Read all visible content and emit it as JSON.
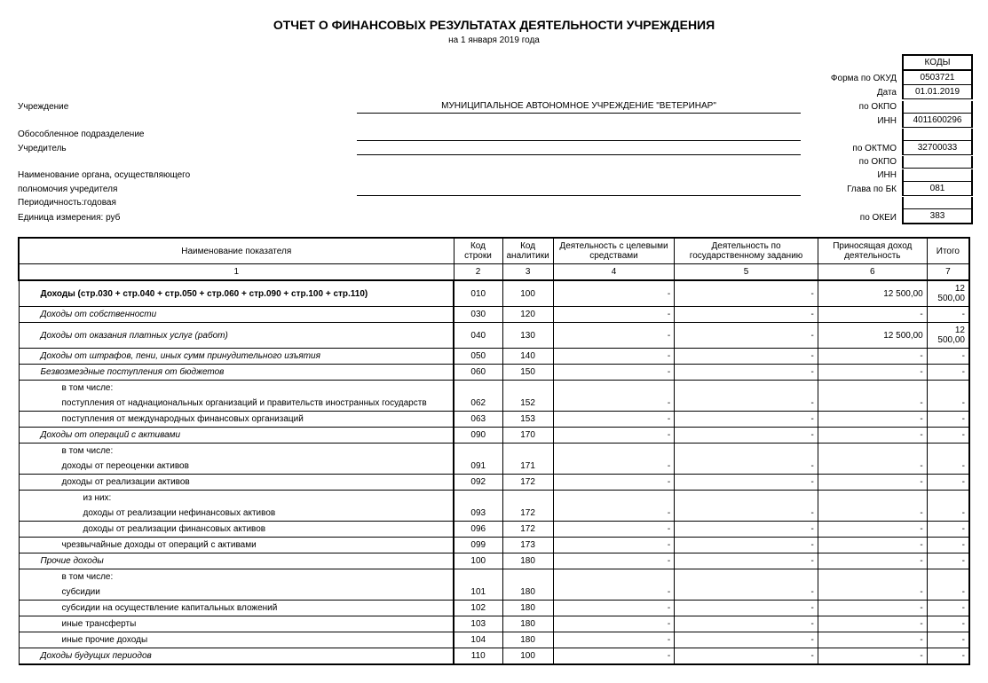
{
  "title": "ОТЧЕТ  О ФИНАНСОВЫХ РЕЗУЛЬТАТАХ ДЕЯТЕЛЬНОСТИ УЧРЕЖДЕНИЯ",
  "subtitle": "на 1 января 2019 года",
  "codes_header": "КОДЫ",
  "lines": {
    "forma": {
      "right": "Форма по ОКУД",
      "code": "0503721"
    },
    "date": {
      "right": "Дата",
      "code": "01.01.2019"
    },
    "inst": {
      "left": "Учреждение",
      "center": "МУНИЦИПАЛЬНОЕ АВТОНОМНОЕ УЧРЕЖДЕНИЕ \"ВЕТЕРИНАР\"",
      "right": "по ОКПО",
      "code": ""
    },
    "inn1": {
      "right": "ИНН",
      "code": "4011600296"
    },
    "subdiv": {
      "left": "Обособленное подразделение",
      "center": ""
    },
    "founder": {
      "left": "Учредитель",
      "center": "",
      "right": "по ОКТМО",
      "code": "32700033"
    },
    "okpo2": {
      "right": "по ОКПО",
      "code": ""
    },
    "organ": {
      "left": "Наименование органа, осуществляющего",
      "right": "ИНН",
      "code": ""
    },
    "glava": {
      "left": "полномочия учредителя",
      "center": "",
      "right": "Глава по БК",
      "code": "081"
    },
    "period": {
      "left": "Периодичность:годовая"
    },
    "unit": {
      "left": "Единица измерения: руб",
      "right": "по ОКЕИ",
      "code": "383"
    }
  },
  "columns": {
    "c1": "Наименование показателя",
    "c2": "Код строки",
    "c3": "Код аналитики",
    "c4": "Деятельность с целевыми средствами",
    "c5": "Деятельность по государственному заданию",
    "c6": "Приносящая доход деятельность",
    "c7": "Итого",
    "n1": "1",
    "n2": "2",
    "n3": "3",
    "n4": "4",
    "n5": "5",
    "n6": "6",
    "n7": "7"
  },
  "rows": [
    {
      "name": "Доходы (стр.030 + стр.040 + стр.050 + стр.060 + стр.090 + стр.100 + стр.110)",
      "indent": 1,
      "bold": true,
      "c2": "010",
      "c3": "100",
      "c4": "-",
      "c5": "-",
      "c6": "12 500,00",
      "c7": "12 500,00"
    },
    {
      "name": "Доходы от собственности",
      "indent": 1,
      "italic": true,
      "c2": "030",
      "c3": "120",
      "c4": "-",
      "c5": "-",
      "c6": "-",
      "c7": "-"
    },
    {
      "name": "Доходы от оказания платных услуг (работ)",
      "indent": 1,
      "italic": true,
      "c2": "040",
      "c3": "130",
      "c4": "-",
      "c5": "-",
      "c6": "12 500,00",
      "c7": "12 500,00"
    },
    {
      "name": "Доходы от штрафов, пени, иных сумм принудительного изъятия",
      "indent": 1,
      "italic": true,
      "c2": "050",
      "c3": "140",
      "c4": "-",
      "c5": "-",
      "c6": "-",
      "c7": "-"
    },
    {
      "name": "Безвозмездные поступления от бюджетов",
      "indent": 1,
      "italic": true,
      "c2": "060",
      "c3": "150",
      "c4": "-",
      "c5": "-",
      "c6": "-",
      "c7": "-"
    },
    {
      "name": "в том числе:",
      "indent": 2,
      "c2": "",
      "c3": "",
      "c4": "",
      "c5": "",
      "c6": "",
      "c7": "",
      "nobottom": true
    },
    {
      "name": "поступления от наднациональных организаций и правительств иностранных государств",
      "indent": 2,
      "c2": "062",
      "c3": "152",
      "c4": "-",
      "c5": "-",
      "c6": "-",
      "c7": "-"
    },
    {
      "name": "поступления от международных финансовых организаций",
      "indent": 2,
      "c2": "063",
      "c3": "153",
      "c4": "-",
      "c5": "-",
      "c6": "-",
      "c7": "-"
    },
    {
      "name": "Доходы от операций с активами",
      "indent": 1,
      "italic": true,
      "c2": "090",
      "c3": "170",
      "c4": "-",
      "c5": "-",
      "c6": "-",
      "c7": "-"
    },
    {
      "name": "в том числе:",
      "indent": 2,
      "c2": "",
      "c3": "",
      "c4": "",
      "c5": "",
      "c6": "",
      "c7": "",
      "nobottom": true
    },
    {
      "name": "доходы от переоценки активов",
      "indent": 2,
      "c2": "091",
      "c3": "171",
      "c4": "-",
      "c5": "-",
      "c6": "-",
      "c7": "-"
    },
    {
      "name": "доходы от реализации активов",
      "indent": 2,
      "c2": "092",
      "c3": "172",
      "c4": "-",
      "c5": "-",
      "c6": "-",
      "c7": "-"
    },
    {
      "name": "из них:",
      "indent": 3,
      "c2": "",
      "c3": "",
      "c4": "",
      "c5": "",
      "c6": "",
      "c7": "",
      "nobottom": true
    },
    {
      "name": "доходы от реализации нефинансовых активов",
      "indent": 3,
      "c2": "093",
      "c3": "172",
      "c4": "-",
      "c5": "-",
      "c6": "-",
      "c7": "-"
    },
    {
      "name": "доходы от реализации финансовых активов",
      "indent": 3,
      "c2": "096",
      "c3": "172",
      "c4": "-",
      "c5": "-",
      "c6": "-",
      "c7": "-"
    },
    {
      "name": "чрезвычайные доходы от операций с активами",
      "indent": 2,
      "c2": "099",
      "c3": "173",
      "c4": "-",
      "c5": "-",
      "c6": "-",
      "c7": "-"
    },
    {
      "name": "Прочие доходы",
      "indent": 1,
      "italic": true,
      "c2": "100",
      "c3": "180",
      "c4": "-",
      "c5": "-",
      "c6": "-",
      "c7": "-"
    },
    {
      "name": "в том числе:",
      "indent": 2,
      "c2": "",
      "c3": "",
      "c4": "",
      "c5": "",
      "c6": "",
      "c7": "",
      "nobottom": true
    },
    {
      "name": "субсидии",
      "indent": 2,
      "c2": "101",
      "c3": "180",
      "c4": "-",
      "c5": "-",
      "c6": "-",
      "c7": "-"
    },
    {
      "name": "субсидии на осуществление капитальных вложений",
      "indent": 2,
      "c2": "102",
      "c3": "180",
      "c4": "-",
      "c5": "-",
      "c6": "-",
      "c7": "-"
    },
    {
      "name": "иные трансферты",
      "indent": 2,
      "c2": "103",
      "c3": "180",
      "c4": "-",
      "c5": "-",
      "c6": "-",
      "c7": "-"
    },
    {
      "name": "иные прочие доходы",
      "indent": 2,
      "c2": "104",
      "c3": "180",
      "c4": "-",
      "c5": "-",
      "c6": "-",
      "c7": "-"
    },
    {
      "name": "Доходы будущих периодов",
      "indent": 1,
      "italic": true,
      "c2": "110",
      "c3": "100",
      "c4": "-",
      "c5": "-",
      "c6": "-",
      "c7": "-",
      "last": true
    }
  ]
}
